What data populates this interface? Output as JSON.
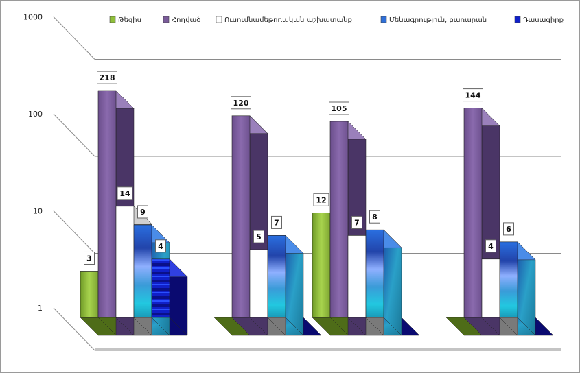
{
  "chart_data": {
    "type": "bar",
    "scale": "log",
    "ylim": [
      1,
      1000
    ],
    "yticks": [
      "1",
      "10",
      "100",
      "1000"
    ],
    "grid": true,
    "legend_position": "top",
    "categories": [
      "",
      "",
      "",
      ""
    ],
    "series": [
      {
        "name": "Թեզիս",
        "color": "#8fbf3a",
        "values": [
          3,
          null,
          12,
          null
        ]
      },
      {
        "name": "Հոդված",
        "color": "#7a5b9a",
        "values": [
          218,
          120,
          105,
          144
        ]
      },
      {
        "name": "Ուսումնամեթոդական աշխատանք",
        "color": "#ffffff",
        "values": [
          14,
          5,
          7,
          4
        ]
      },
      {
        "name": "Մենագրություն, բառարան",
        "color": "#2f6fd8",
        "values": [
          9,
          7,
          8,
          6
        ]
      },
      {
        "name": "Դասագիրք",
        "color": "#1020c8",
        "values": [
          4,
          null,
          null,
          null
        ]
      }
    ]
  }
}
